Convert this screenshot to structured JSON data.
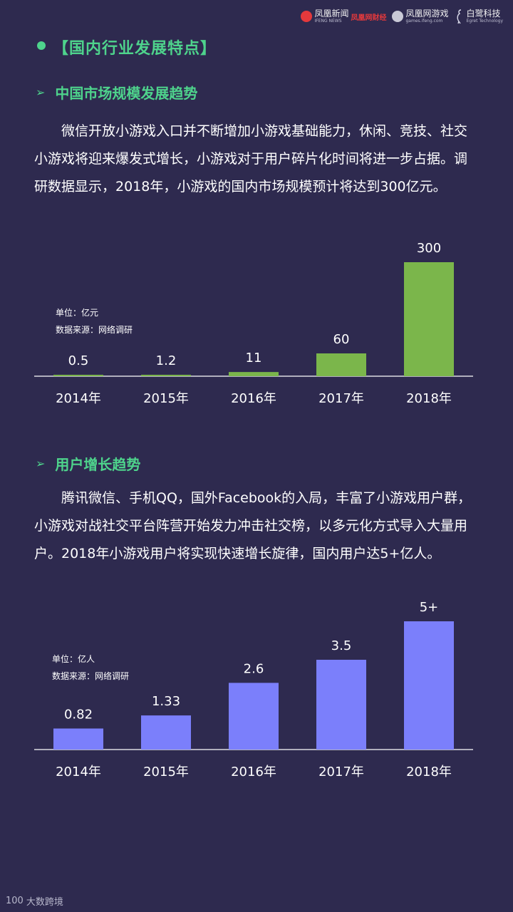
{
  "header": {
    "logos": [
      {
        "icon": "phoenix-news-icon",
        "name": "凤凰新闻",
        "sub": "IFENG NEWS",
        "badge": "凤凰网财经"
      },
      {
        "icon": "phoenix-games-icon",
        "name": "凤凰网游戏",
        "sub": "games.ifeng.com"
      },
      {
        "icon": "egret-icon",
        "name": "白鹭科技",
        "sub": "Egret Technology"
      }
    ]
  },
  "section": {
    "title": "【国内行业发展特点】"
  },
  "market": {
    "arrow": "➢",
    "heading": "中国市场规模发展趋势",
    "paragraph": "微信开放小游戏入口并不断增加小游戏基础能力，休闲、竞技、社交小游戏将迎来爆发式增长，小游戏对于用户碎片化时间将进一步占据。调研数据显示，2018年，小游戏的国内市场规模预计将达到300亿元。"
  },
  "users": {
    "arrow": "➢",
    "heading": "用户增长趋势",
    "paragraph": "腾讯微信、手机QQ，国外Facebook的入局，丰富了小游戏用户群，小游戏对战社交平台阵营开始发力冲击社交榜，以多元化方式导入大量用户。2018年小游戏用户将实现快速增长旋律，国内用户达5+亿人。"
  },
  "chart_data": [
    {
      "type": "bar",
      "categories": [
        "2014年",
        "2015年",
        "2016年",
        "2017年",
        "2018年"
      ],
      "values": [
        0.5,
        1.2,
        11,
        60,
        300
      ],
      "data_labels": [
        "0.5",
        "1.2",
        "11",
        "60",
        "300"
      ],
      "unit_note": "单位：亿元",
      "source_note": "数据来源：网络调研",
      "ylim": [
        0,
        300
      ],
      "bar_color": "#7bb64b"
    },
    {
      "type": "bar",
      "categories": [
        "2014年",
        "2015年",
        "2016年",
        "2017年",
        "2018年"
      ],
      "values": [
        0.82,
        1.33,
        2.6,
        3.5,
        5
      ],
      "data_labels": [
        "0.82",
        "1.33",
        "2.6",
        "3.5",
        "5+"
      ],
      "unit_note": "单位：亿人",
      "source_note": "数据来源：网络调研",
      "ylim": [
        0,
        5
      ],
      "bar_color": "#7b7ffb"
    }
  ],
  "footer": {
    "mark": "100",
    "text": "大数跨境"
  }
}
